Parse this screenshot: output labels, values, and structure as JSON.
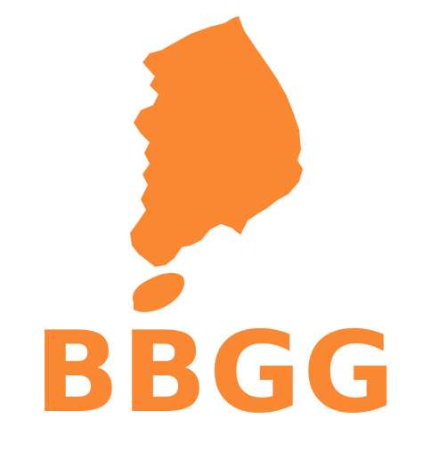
{
  "brand": {
    "wordmark": "BBGG",
    "color": "#FA8832",
    "background": "#FFFFFF"
  },
  "emblem": {
    "icon": "south-korea-map-icon"
  }
}
